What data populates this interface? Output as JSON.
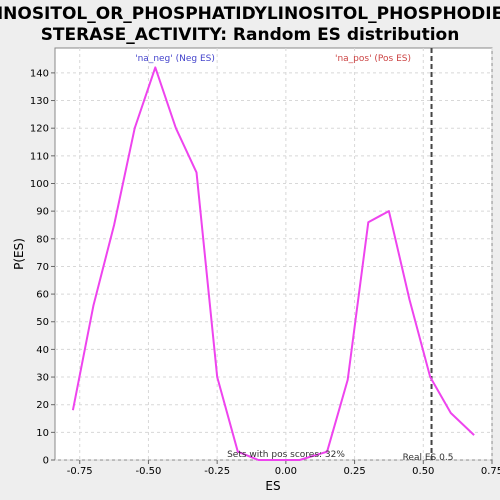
{
  "chart_data": {
    "type": "line",
    "title_lines": [
      "INOSITOL_OR_PHOSPHATIDYLINOSITOL_PHOSPHODIE",
      "STERASE_ACTIVITY: Random ES distribution"
    ],
    "xlabel": "ES",
    "ylabel": "P(ES)",
    "xlim": [
      -0.84,
      0.75
    ],
    "ylim": [
      0,
      149
    ],
    "x_ticks": [
      -0.75,
      -0.5,
      -0.25,
      0.0,
      0.25,
      0.5,
      0.75
    ],
    "x_tick_labels": [
      "-0.75",
      "-0.50",
      "-0.25",
      "0.00",
      "0.25",
      "0.50",
      "0.75"
    ],
    "y_ticks": [
      0,
      10,
      20,
      30,
      40,
      50,
      60,
      70,
      80,
      90,
      100,
      110,
      120,
      130,
      140
    ],
    "y_tick_labels": [
      "0",
      "10",
      "20",
      "30",
      "40",
      "50",
      "60",
      "70",
      "80",
      "90",
      "100",
      "110",
      "120",
      "130",
      "140"
    ],
    "grid": true,
    "series": [
      {
        "color": "#ee44ee",
        "x": [
          -0.775,
          -0.7,
          -0.625,
          -0.55,
          -0.475,
          -0.4,
          -0.325,
          -0.25,
          -0.175,
          -0.1,
          -0.025,
          0.05,
          0.15,
          0.225,
          0.3,
          0.375,
          0.45,
          0.525,
          0.6,
          0.685
        ],
        "y": [
          18,
          56,
          85,
          120,
          142,
          120,
          104,
          30,
          3,
          0,
          0,
          0,
          3,
          29,
          86,
          90,
          58,
          30,
          17,
          9
        ]
      }
    ],
    "annotations": {
      "neg_label": "'na_neg' (Neg ES)",
      "neg_color": "#4444cc",
      "pos_label": "'na_pos' (Pos ES)",
      "pos_color": "#cc4444",
      "pos_scores_text": "Sets with pos scores: 32%",
      "real_es_text": "Real ES 0.5",
      "real_es_value": 0.53
    }
  }
}
